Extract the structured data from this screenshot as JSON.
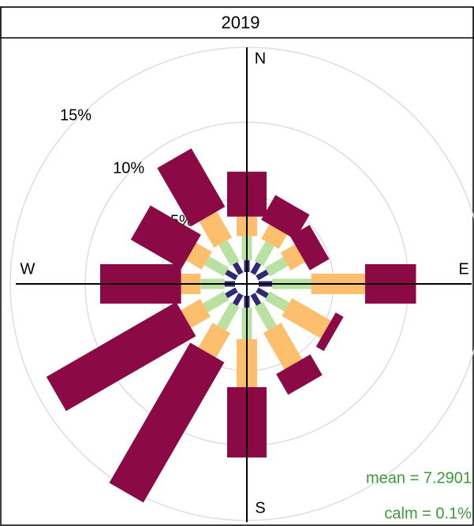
{
  "chart_data": {
    "type": "windrose",
    "title": "2019",
    "angles": [
      0,
      30,
      60,
      90,
      120,
      150,
      180,
      210,
      240,
      270,
      300,
      330
    ],
    "compass": [
      "N",
      "E",
      "S",
      "W"
    ],
    "series": [
      {
        "color": "#2e2a78",
        "values": [
          0.8,
          0.8,
          0.8,
          0.9,
          0.8,
          0.8,
          0.8,
          0.8,
          0.8,
          0.7,
          0.8,
          0.8
        ]
      },
      {
        "color": "#b9e1a2",
        "values": [
          1.6,
          1.5,
          1.4,
          2.6,
          1.5,
          1.8,
          2.1,
          1.8,
          1.6,
          1.6,
          1.5,
          1.6
        ]
      },
      {
        "color": "#fdbe6e",
        "values": [
          1.3,
          1.1,
          1.1,
          3.6,
          3.0,
          2.8,
          3.2,
          1.9,
          1.5,
          1.3,
          1.2,
          2.0
        ]
      },
      {
        "color": "#8b0a45",
        "values": [
          3.0,
          1.9,
          1.5,
          3.4,
          0.6,
          1.6,
          4.7,
          10.8,
          10.0,
          5.4,
          3.9,
          4.5
        ]
      }
    ],
    "rticks": [
      {
        "value": 5,
        "label": "5%"
      },
      {
        "value": 10,
        "label": "10%"
      },
      {
        "value": 15,
        "label": "15%"
      }
    ],
    "grid": true,
    "annotations": [
      "mean = 7.2901",
      "calm = 0.1%"
    ]
  }
}
